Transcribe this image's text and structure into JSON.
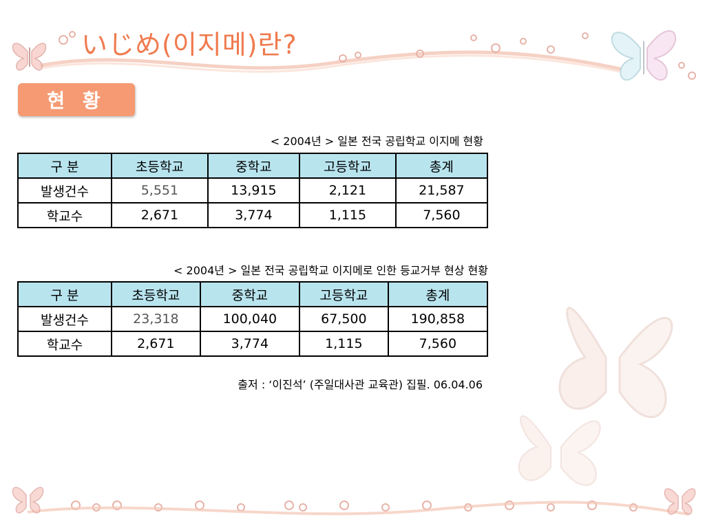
{
  "slide": {
    "title": "いじめ(이지메)란?",
    "section_badge": "현 황"
  },
  "table1": {
    "caption": "< 2004년 > 일본 전국 공립학교 이지메 현황",
    "headers": [
      "구 분",
      "초등학교",
      "중학교",
      "고등학교",
      "총계"
    ],
    "rows": [
      {
        "label": "발생건수",
        "values": [
          "5,551",
          "13,915",
          "2,121",
          "21,587"
        ]
      },
      {
        "label": "학교수",
        "values": [
          "2,671",
          "3,774",
          "1,115",
          "7,560"
        ]
      }
    ]
  },
  "table2": {
    "caption": "< 2004년 > 일본 전국 공립학교 이지메로 인한 등교거부 현상 현황",
    "headers": [
      "구 분",
      "초등학교",
      "중학교",
      "고등학교",
      "총계"
    ],
    "rows": [
      {
        "label": "발생건수",
        "values": [
          "23,318",
          "100,040",
          "67,500",
          "190,858"
        ]
      },
      {
        "label": "학교수",
        "values": [
          "2,671",
          "3,774",
          "1,115",
          "7,560"
        ]
      }
    ]
  },
  "source": "출저 : ‘이진석’ (주일대사관 교육관) 집필. 06.04.06",
  "colors": {
    "title": "#f07a4e",
    "badge": "#f59a73",
    "table_header": "#b8e4ee"
  },
  "decor_icons": [
    "butterfly-icon",
    "swirl-ribbon",
    "bubble-chain"
  ]
}
